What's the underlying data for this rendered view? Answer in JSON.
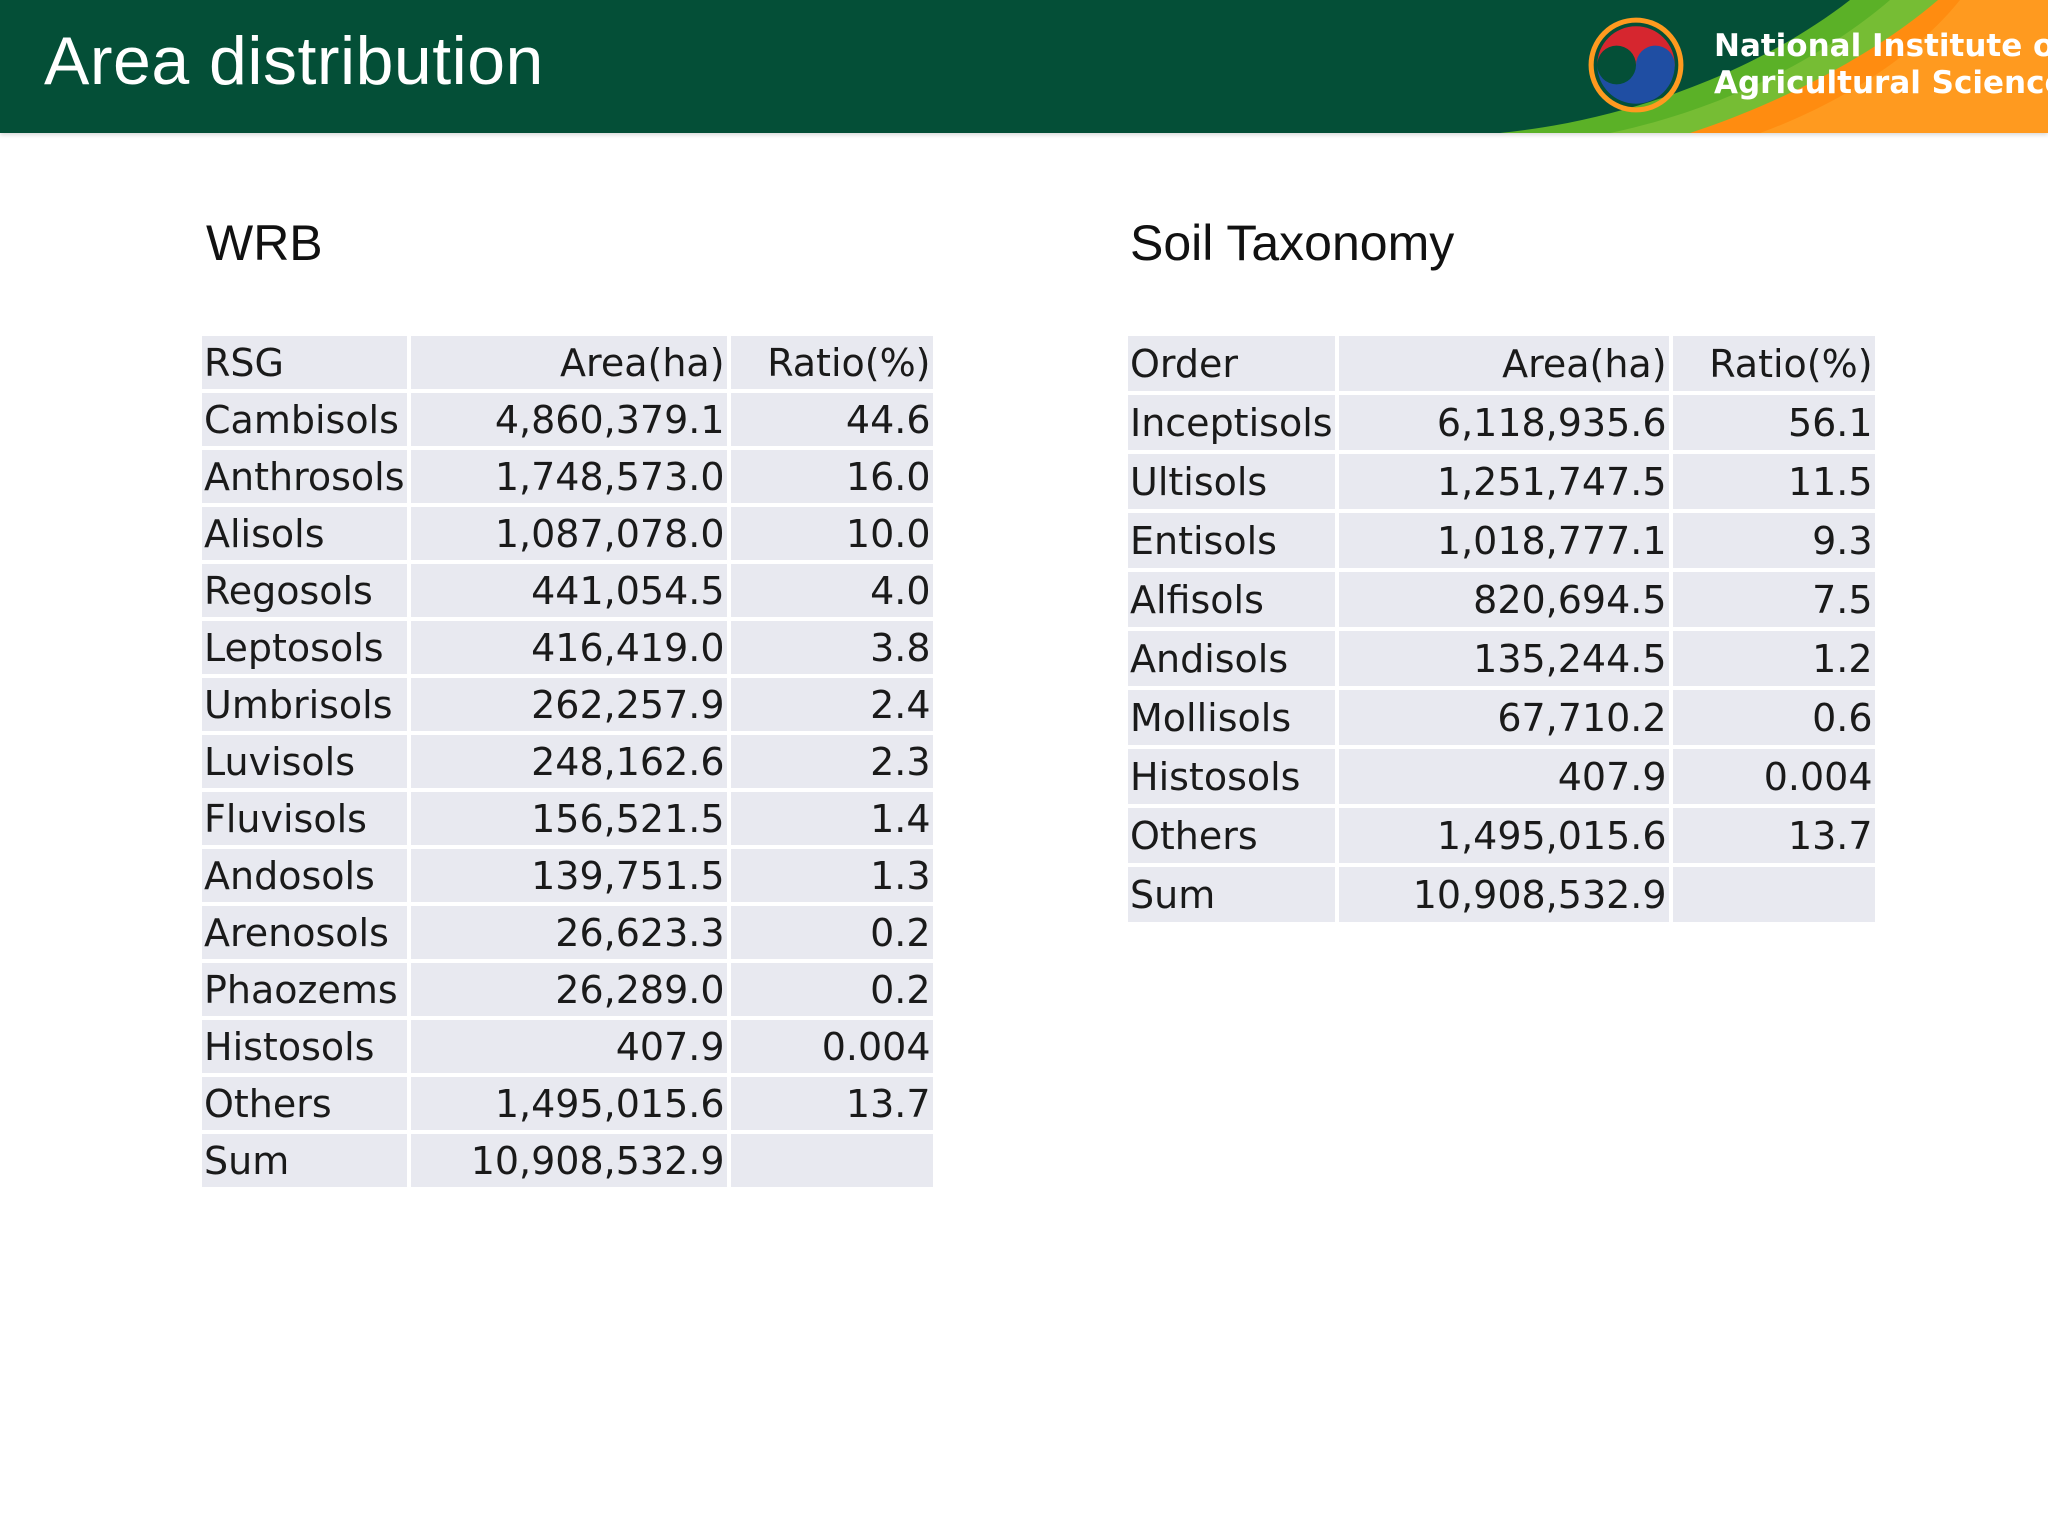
{
  "header": {
    "title": "Area distribution",
    "org_line1": "National Institute of",
    "org_line2": "Agricultural Sciences",
    "colors": {
      "bar": "#044f37",
      "green": "#5bb127",
      "orange": "#ff8c10"
    }
  },
  "wrb": {
    "title": "WRB",
    "columns": [
      "RSG",
      "Area(ha)",
      "Ratio(%)"
    ],
    "rows": [
      [
        "Cambisols",
        "4,860,379.1",
        "44.6"
      ],
      [
        "Anthrosols",
        "1,748,573.0",
        "16.0"
      ],
      [
        "Alisols",
        "1,087,078.0",
        "10.0"
      ],
      [
        "Regosols",
        "441,054.5",
        "4.0"
      ],
      [
        "Leptosols",
        "416,419.0",
        "3.8"
      ],
      [
        "Umbrisols",
        "262,257.9",
        "2.4"
      ],
      [
        "Luvisols",
        "248,162.6",
        "2.3"
      ],
      [
        "Fluvisols",
        "156,521.5",
        "1.4"
      ],
      [
        "Andosols",
        "139,751.5",
        "1.3"
      ],
      [
        "Arenosols",
        "26,623.3",
        "0.2"
      ],
      [
        "Phaozems",
        "26,289.0",
        "0.2"
      ],
      [
        "Histosols",
        "407.9",
        "0.004"
      ],
      [
        "Others",
        "1,495,015.6",
        "13.7"
      ],
      [
        "Sum",
        "10,908,532.9",
        ""
      ]
    ]
  },
  "soil_taxonomy": {
    "title": "Soil Taxonomy",
    "columns": [
      "Order",
      "Area(ha)",
      "Ratio(%)"
    ],
    "rows": [
      [
        "Inceptisols",
        "6,118,935.6",
        "56.1"
      ],
      [
        "Ultisols",
        "1,251,747.5",
        "11.5"
      ],
      [
        "Entisols",
        "1,018,777.1",
        "9.3"
      ],
      [
        "Alfisols",
        "820,694.5",
        "7.5"
      ],
      [
        "Andisols",
        "135,244.5",
        "1.2"
      ],
      [
        "Mollisols",
        "67,710.2",
        "0.6"
      ],
      [
        "Histosols",
        "407.9",
        "0.004"
      ],
      [
        "Others",
        "1,495,015.6",
        "13.7"
      ],
      [
        "Sum",
        "10,908,532.9",
        ""
      ]
    ]
  }
}
